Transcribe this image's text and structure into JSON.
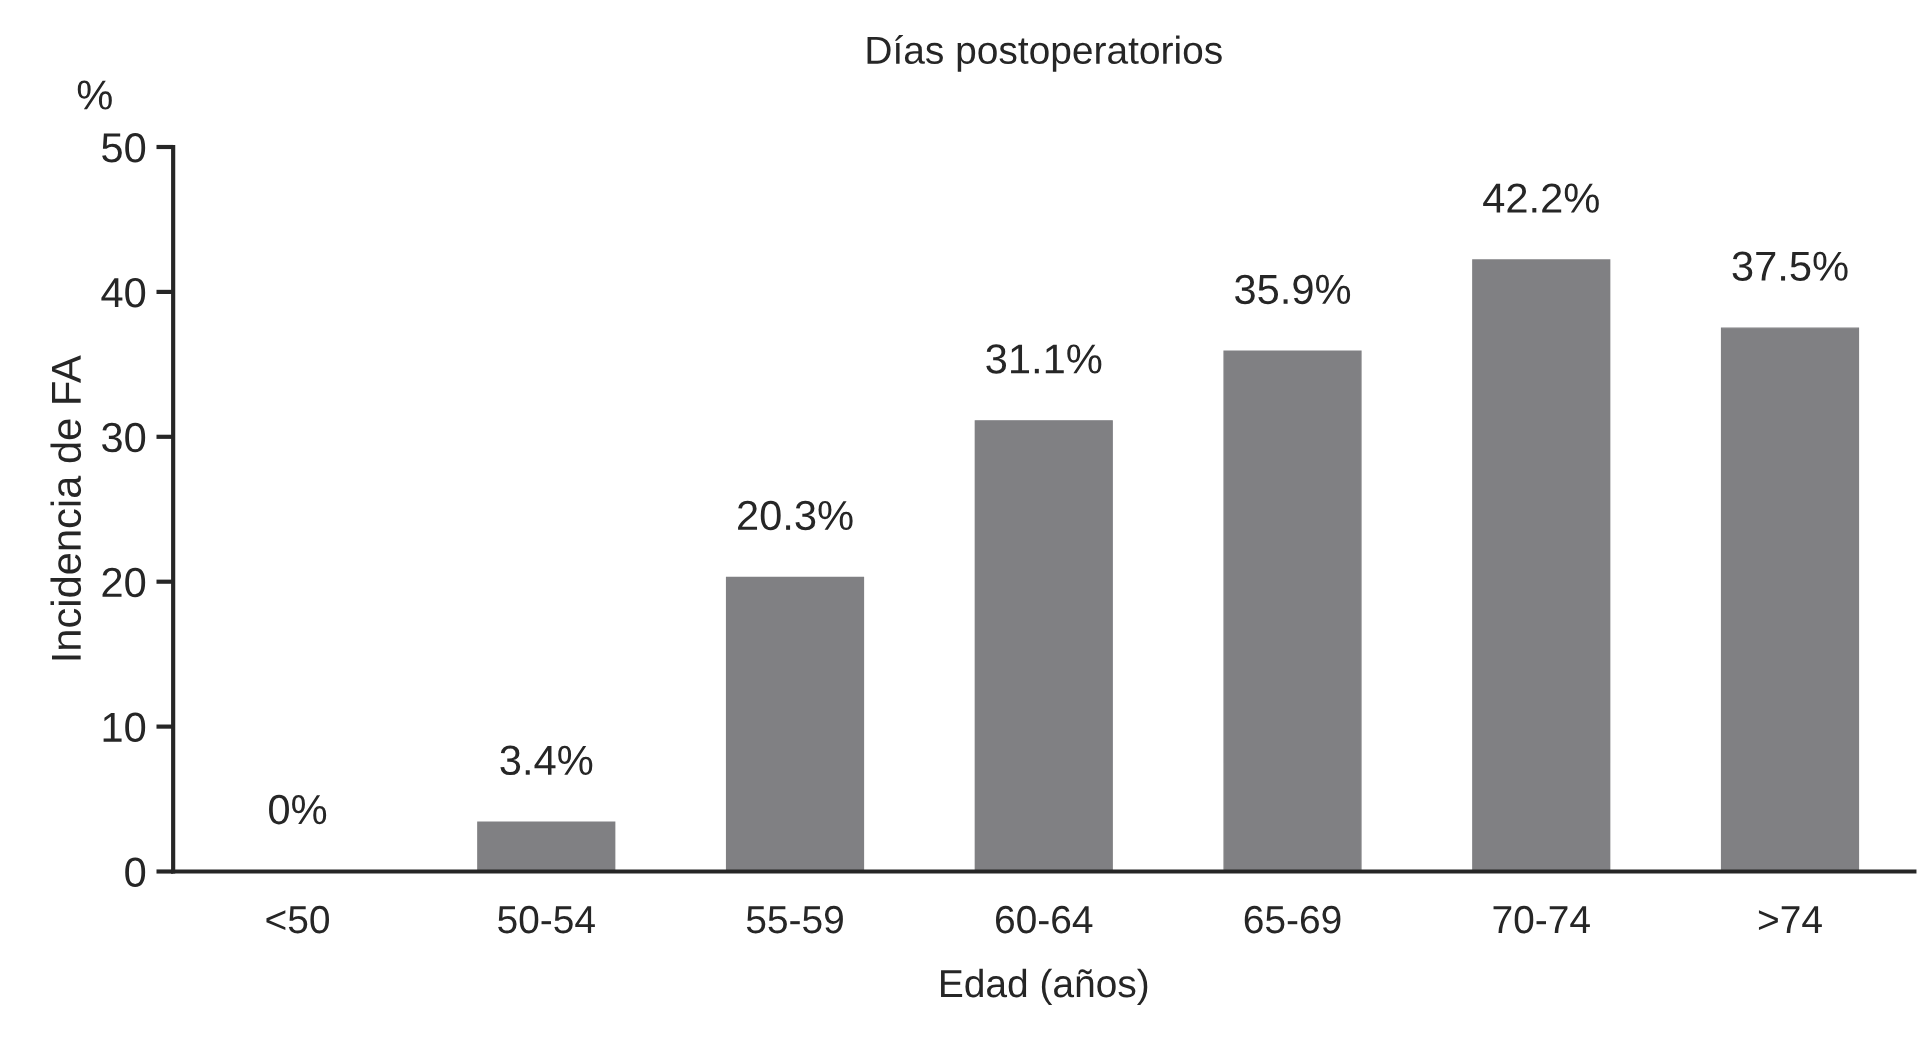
{
  "chart_data": {
    "type": "bar",
    "title": "Días postoperatorios",
    "xlabel": "Edad (años)",
    "ylabel": "Incidencia de FA",
    "annotations": [
      "%"
    ],
    "categories": [
      "<50",
      "50-54",
      "55-59",
      "60-64",
      "65-69",
      "70-74",
      ">74"
    ],
    "values": [
      0,
      3.4,
      20.3,
      31.1,
      35.9,
      42.2,
      37.5
    ],
    "value_labels": [
      "0%",
      "3.4%",
      "20.3%",
      "31.1%",
      "35.9%",
      "42.2%",
      "37.5%"
    ],
    "color": "#808083",
    "ylim": [
      0,
      50
    ],
    "yticks": [
      0,
      10,
      20,
      30,
      40,
      50
    ],
    "grid": false,
    "legend": false
  }
}
